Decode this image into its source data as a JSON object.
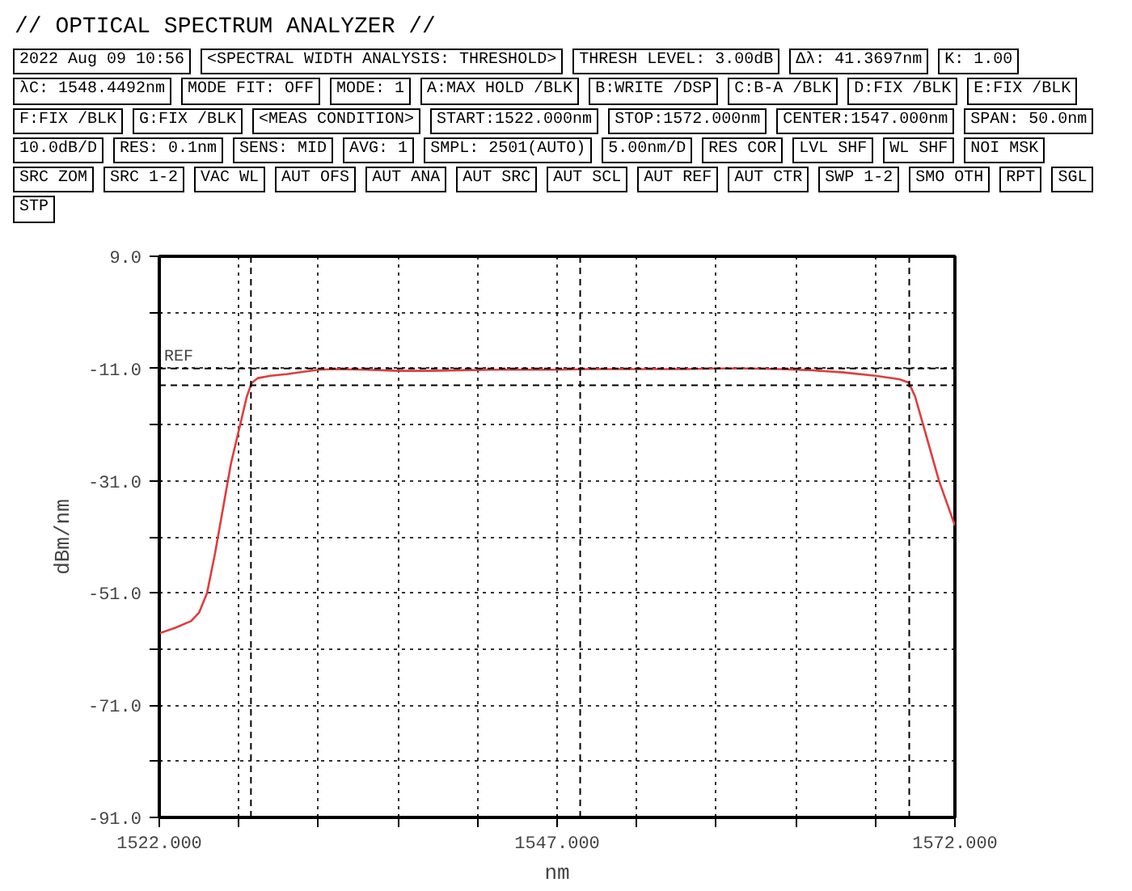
{
  "chart_data": {
    "type": "line",
    "title": "// OPTICAL SPECTRUM ANALYZER //",
    "xlabel": "nm",
    "ylabel": "dBm/nm",
    "x": [
      1522,
      1523,
      1524,
      1524.5,
      1525,
      1525.5,
      1526,
      1526.5,
      1527,
      1527.5,
      1527.8,
      1528.2,
      1529,
      1530,
      1531,
      1532,
      1533,
      1535,
      1537,
      1539,
      1541,
      1543,
      1545,
      1547,
      1549,
      1551,
      1553,
      1555,
      1557,
      1559,
      1561,
      1563,
      1565,
      1567,
      1568.5,
      1569.1,
      1569.5,
      1570,
      1570.5,
      1571,
      1571.5,
      1572
    ],
    "series": [
      {
        "color": "#e03c3c",
        "values": [
          -58.2,
          -57.2,
          -56,
          -54.5,
          -51,
          -44,
          -36,
          -28,
          -22,
          -16,
          -13.6,
          -12.7,
          -12.3,
          -12.0,
          -11.6,
          -11.2,
          -11.1,
          -11.2,
          -11.4,
          -11.4,
          -11.3,
          -11.2,
          -11.2,
          -11.2,
          -11.1,
          -11.1,
          -11.1,
          -11.1,
          -11.0,
          -11.0,
          -11.1,
          -11.3,
          -11.7,
          -12.3,
          -12.9,
          -13.5,
          -16,
          -21,
          -26,
          -31,
          -35,
          -39
        ]
      }
    ],
    "xlim": [
      1522,
      1572
    ],
    "ylim": [
      -91,
      9
    ],
    "xticks": [
      {
        "value": 1522,
        "label": "1522.000"
      },
      {
        "value": 1527,
        "label": null
      },
      {
        "value": 1532,
        "label": null
      },
      {
        "value": 1537,
        "label": null
      },
      {
        "value": 1542,
        "label": null
      },
      {
        "value": 1547,
        "label": "1547.000"
      },
      {
        "value": 1552,
        "label": null
      },
      {
        "value": 1557,
        "label": null
      },
      {
        "value": 1562,
        "label": null
      },
      {
        "value": 1567,
        "label": null
      },
      {
        "value": 1572,
        "label": "1572.000"
      }
    ],
    "yticks": [
      {
        "value": 9,
        "label": "9.0"
      },
      {
        "value": -1,
        "label": null
      },
      {
        "value": -11,
        "label": "-11.0"
      },
      {
        "value": -21,
        "label": null
      },
      {
        "value": -31,
        "label": "-31.0"
      },
      {
        "value": -41,
        "label": null
      },
      {
        "value": -51,
        "label": "-51.0"
      },
      {
        "value": -61,
        "label": null
      },
      {
        "value": -71,
        "label": "-71.0"
      },
      {
        "value": -81,
        "label": null
      },
      {
        "value": -91,
        "label": "-91.0"
      }
    ],
    "ref_lines": [
      {
        "axis": "y",
        "value": -11,
        "label": "REF",
        "line_style": "dashed"
      },
      {
        "axis": "y",
        "value": -14,
        "label": null,
        "line_style": "dashed"
      },
      {
        "axis": "x",
        "value": 1527.76,
        "label": null,
        "line_style": "dashed"
      },
      {
        "axis": "x",
        "value": 1548.45,
        "label": null,
        "line_style": "dashed"
      },
      {
        "axis": "x",
        "value": 1569.13,
        "label": null,
        "line_style": "dashed"
      }
    ],
    "grid": true,
    "line_style": "solid",
    "marker": "none",
    "annotations": [
      "2022 Aug 09 10:56",
      "<SPECTRAL WIDTH ANALYSIS: THRESHOLD>",
      "THRESH LEVEL: 3.00dB",
      "Δλ: 41.3697nm",
      "K: 1.00",
      "λC: 1548.4492nm",
      "MODE FIT: OFF",
      "MODE: 1",
      "A:MAX HOLD /BLK",
      "B:WRITE /DSP",
      "C:B-A /BLK",
      "D:FIX /BLK",
      "E:FIX /BLK",
      "F:FIX /BLK",
      "G:FIX /BLK",
      "<MEAS CONDITION>",
      "START:1522.000nm",
      "STOP:1572.000nm",
      "CENTER:1547.000nm",
      "SPAN: 50.0nm",
      "10.0dB/D",
      "RES: 0.1nm",
      "SENS: MID",
      "AVG: 1",
      "SMPL: 2501(AUTO)",
      "5.00nm/D",
      "RES COR",
      "LVL SHF",
      "WL SHF",
      "NOI MSK",
      "SRC ZOM",
      "SRC 1-2",
      "VAC WL",
      "AUT OFS",
      "AUT ANA",
      "AUT SRC",
      "AUT SCL",
      "AUT REF",
      "AUT CTR",
      "SWP 1-2",
      "SMO OTH",
      "RPT",
      "SGL",
      "STP"
    ]
  }
}
